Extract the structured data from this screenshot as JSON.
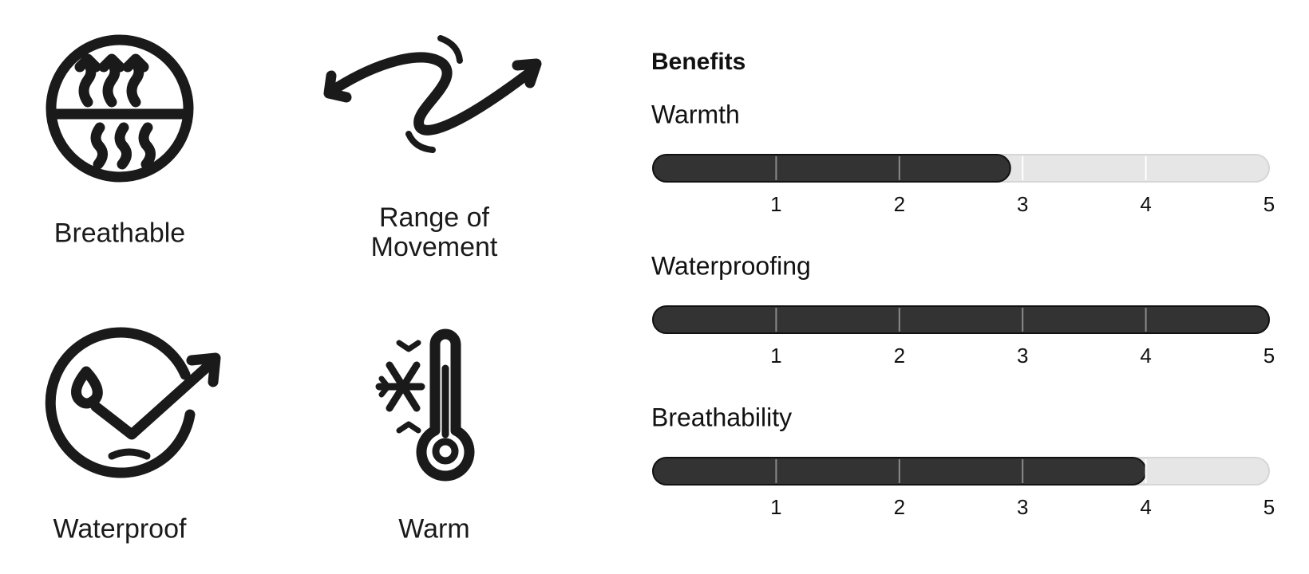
{
  "features": [
    {
      "label": "Breathable"
    },
    {
      "label": "Range of Movement"
    },
    {
      "label": "Waterproof"
    },
    {
      "label": "Warm"
    }
  ],
  "benefits": {
    "title": "Benefits",
    "scale": {
      "min": 0,
      "max": 5,
      "ticks": [
        1,
        2,
        3,
        4,
        5
      ]
    },
    "ratings": [
      {
        "name": "Warmth",
        "value": 2.9
      },
      {
        "name": "Waterproofing",
        "value": 5
      },
      {
        "name": "Breathability",
        "value": 4
      }
    ]
  }
}
